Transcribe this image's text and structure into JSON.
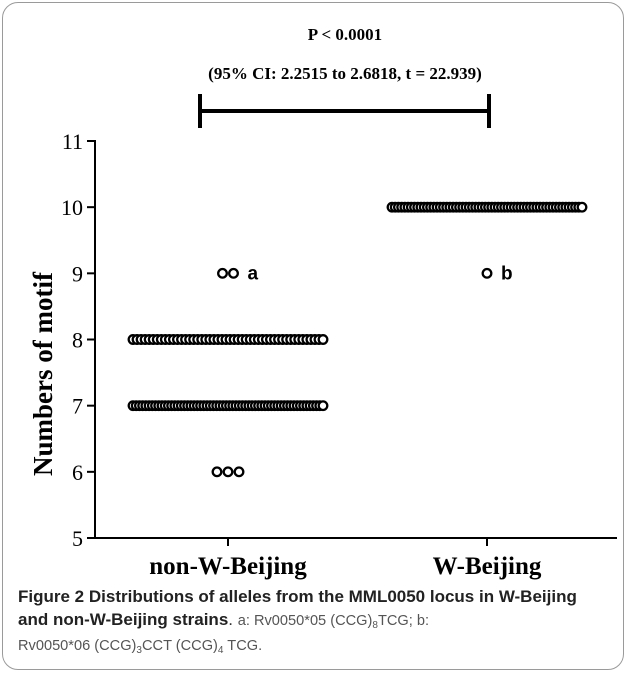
{
  "chart_data": {
    "type": "scatter",
    "title": "P < 0.0001",
    "subtitle": "(95% CI: 2.2515 to 2.6818, t = 22.939)",
    "xlabel": "",
    "ylabel": "Numbers of motif",
    "categories": [
      "non-W-Beijing",
      "W-Beijing"
    ],
    "ylim": [
      5,
      11
    ],
    "yticks": [
      5,
      6,
      7,
      8,
      9,
      10,
      11
    ],
    "grid": false,
    "points": [
      {
        "category": "non-W-Beijing",
        "y": 9,
        "count": 2,
        "annotation": "a"
      },
      {
        "category": "non-W-Beijing",
        "y": 8,
        "count": 48
      },
      {
        "category": "non-W-Beijing",
        "y": 7,
        "count": 60
      },
      {
        "category": "non-W-Beijing",
        "y": 6,
        "count": 3
      },
      {
        "category": "W-Beijing",
        "y": 10,
        "count": 60
      },
      {
        "category": "W-Beijing",
        "y": 9,
        "count": 1,
        "annotation": "b"
      }
    ]
  },
  "caption": {
    "label": "Figure 2",
    "title": "Distributions of alleles from the MML0050 locus in W-Beijing and non-W-Beijing strains",
    "note_a_prefix": "a: Rv0050*05 (CCG)",
    "note_a_sub": "8",
    "note_a_suffix": "TCG; b:",
    "note_b_prefix": "Rv0050*06 (CCG)",
    "note_b_sub1": "3",
    "note_b_mid": "CCT (CCG)",
    "note_b_sub2": "4",
    "note_b_suffix": " TCG."
  }
}
